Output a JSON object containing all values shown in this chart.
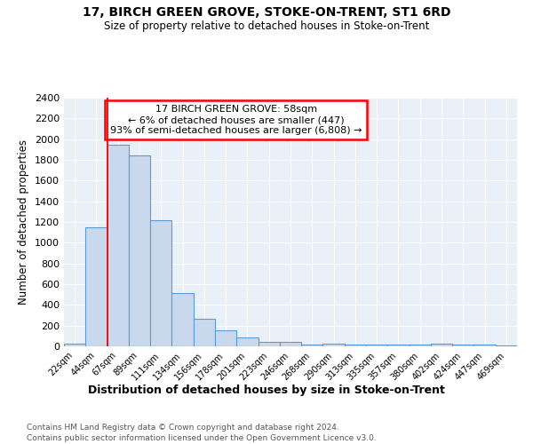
{
  "title1": "17, BIRCH GREEN GROVE, STOKE-ON-TRENT, ST1 6RD",
  "title2": "Size of property relative to detached houses in Stoke-on-Trent",
  "xlabel": "Distribution of detached houses by size in Stoke-on-Trent",
  "ylabel": "Number of detached properties",
  "bin_labels": [
    "22sqm",
    "44sqm",
    "67sqm",
    "89sqm",
    "111sqm",
    "134sqm",
    "156sqm",
    "178sqm",
    "201sqm",
    "223sqm",
    "246sqm",
    "268sqm",
    "290sqm",
    "313sqm",
    "335sqm",
    "357sqm",
    "380sqm",
    "402sqm",
    "424sqm",
    "447sqm",
    "469sqm"
  ],
  "bar_values": [
    30,
    1150,
    1950,
    1840,
    1220,
    515,
    265,
    155,
    85,
    45,
    42,
    20,
    22,
    18,
    18,
    15,
    15,
    22,
    15,
    15,
    5
  ],
  "bar_color": "#c9d9ed",
  "bar_edge_color": "#5b9bd5",
  "annotation_line1": "17 BIRCH GREEN GROVE: 58sqm",
  "annotation_line2": "← 6% of detached houses are smaller (447)",
  "annotation_line3": "93% of semi-detached houses are larger (6,808) →",
  "red_line_x": 1.5,
  "ylim_max": 2400,
  "yticks": [
    0,
    200,
    400,
    600,
    800,
    1000,
    1200,
    1400,
    1600,
    1800,
    2000,
    2200,
    2400
  ],
  "footnote1": "Contains HM Land Registry data © Crown copyright and database right 2024.",
  "footnote2": "Contains public sector information licensed under the Open Government Licence v3.0.",
  "plot_bg_color": "#eaf0f8",
  "grid_color": "#ffffff",
  "fig_bg_color": "#ffffff"
}
